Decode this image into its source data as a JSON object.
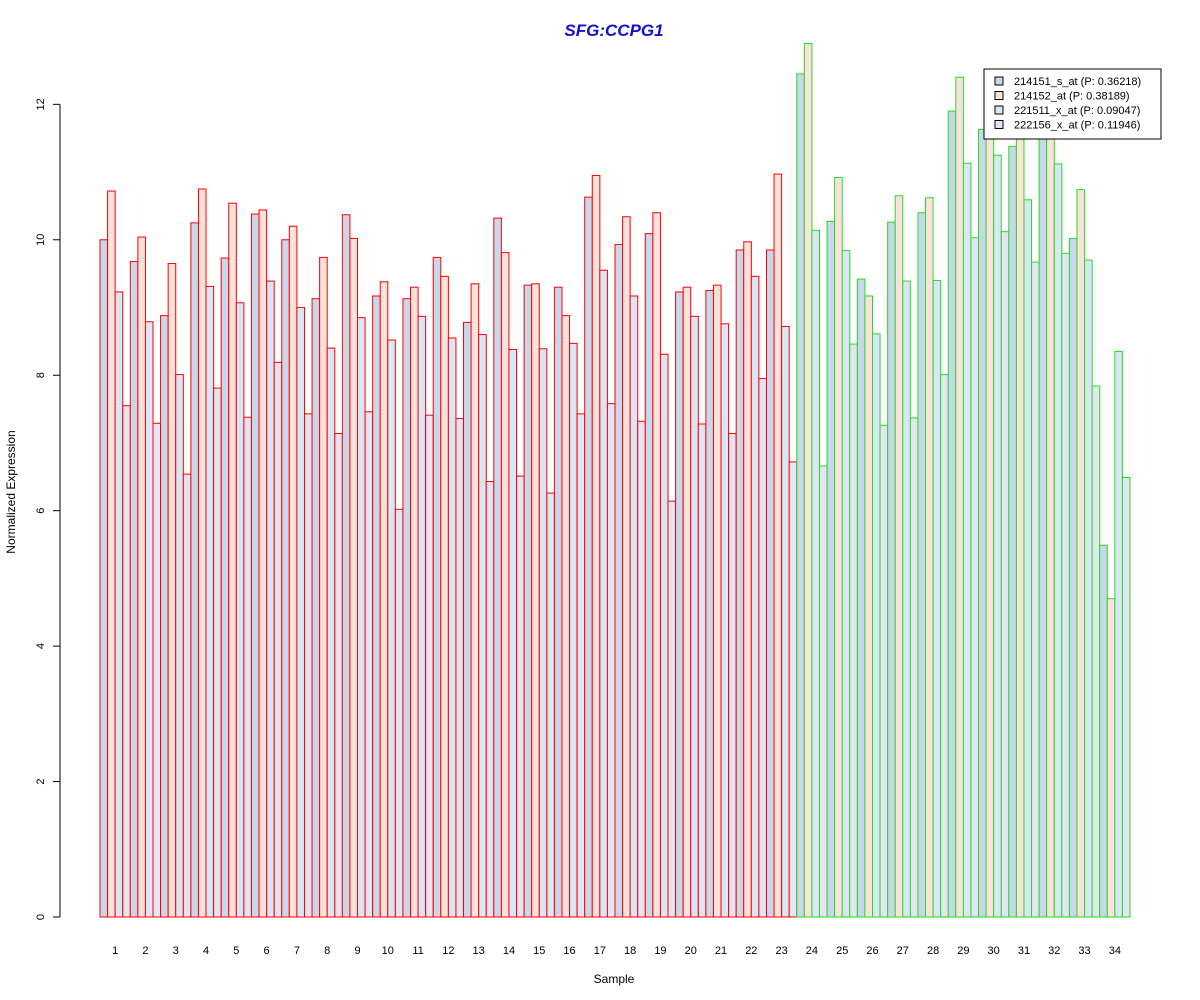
{
  "chart_data": {
    "type": "bar",
    "title": "SFG:CCPG1",
    "xlabel": "Sample",
    "ylabel": "Normalized Expression",
    "ylim": [
      0,
      12.95
    ],
    "yticks": [
      0,
      2,
      4,
      6,
      8,
      10,
      12
    ],
    "categories": [
      "1",
      "2",
      "3",
      "4",
      "5",
      "6",
      "7",
      "8",
      "9",
      "10",
      "11",
      "12",
      "13",
      "14",
      "15",
      "16",
      "17",
      "18",
      "19",
      "20",
      "21",
      "22",
      "23",
      "24",
      "25",
      "26",
      "27",
      "28",
      "29",
      "30",
      "31",
      "32",
      "33",
      "34"
    ],
    "group_colors": {
      "group1": "#ff0000",
      "group2": "#22dd22"
    },
    "group_of_category": [
      "group1",
      "group1",
      "group1",
      "group1",
      "group1",
      "group1",
      "group1",
      "group1",
      "group1",
      "group1",
      "group1",
      "group1",
      "group1",
      "group1",
      "group1",
      "group1",
      "group1",
      "group1",
      "group1",
      "group1",
      "group1",
      "group1",
      "group1",
      "group2",
      "group2",
      "group2",
      "group2",
      "group2",
      "group2",
      "group2",
      "group2",
      "group2",
      "group2",
      "group2"
    ],
    "legend_position": "top-right",
    "grid": false,
    "series": [
      {
        "name": "214151_s_at (P: 0.36218)",
        "fill": "#c9d7ea",
        "values": [
          10.0,
          9.68,
          8.88,
          10.25,
          9.73,
          10.38,
          10.0,
          9.13,
          10.37,
          9.17,
          9.13,
          9.74,
          8.78,
          10.32,
          9.33,
          9.3,
          10.63,
          9.93,
          10.09,
          9.23,
          9.25,
          9.85,
          9.85,
          12.45,
          10.27,
          9.42,
          10.26,
          10.4,
          11.9,
          11.63,
          11.38,
          12.1,
          10.02,
          5.49
        ]
      },
      {
        "name": "214152_at (P: 0.38189)",
        "fill": "#fde2dc",
        "values": [
          10.72,
          10.04,
          9.65,
          10.75,
          10.54,
          10.44,
          10.2,
          9.74,
          10.02,
          9.38,
          9.3,
          9.46,
          9.35,
          9.81,
          9.35,
          8.88,
          10.95,
          10.34,
          10.4,
          9.3,
          9.33,
          9.97,
          10.97,
          12.9,
          10.92,
          9.17,
          10.65,
          10.62,
          12.4,
          12.1,
          12.0,
          12.2,
          10.74,
          4.7
        ]
      },
      {
        "name": "221511_x_at (P: 0.09047)",
        "fill": "#d8e6f5",
        "values": [
          9.23,
          8.79,
          8.01,
          9.31,
          9.07,
          9.39,
          9.0,
          8.4,
          8.85,
          8.52,
          8.87,
          8.55,
          8.6,
          8.38,
          8.39,
          8.47,
          9.55,
          9.17,
          8.31,
          8.87,
          8.76,
          9.46,
          8.72,
          10.14,
          9.84,
          8.61,
          9.39,
          9.4,
          11.13,
          11.25,
          10.59,
          11.12,
          9.7,
          8.35
        ]
      },
      {
        "name": "222156_x_at (P: 0.11946)",
        "fill": "#e4e4f3",
        "values": [
          7.55,
          7.29,
          6.54,
          7.81,
          7.38,
          8.19,
          7.43,
          7.14,
          7.46,
          6.02,
          7.41,
          7.36,
          6.43,
          6.51,
          6.26,
          7.43,
          7.58,
          7.32,
          6.14,
          7.28,
          7.14,
          7.95,
          6.72,
          6.66,
          8.46,
          7.26,
          7.37,
          8.01,
          10.03,
          10.12,
          9.67,
          9.8,
          7.84,
          6.49
        ]
      }
    ]
  }
}
